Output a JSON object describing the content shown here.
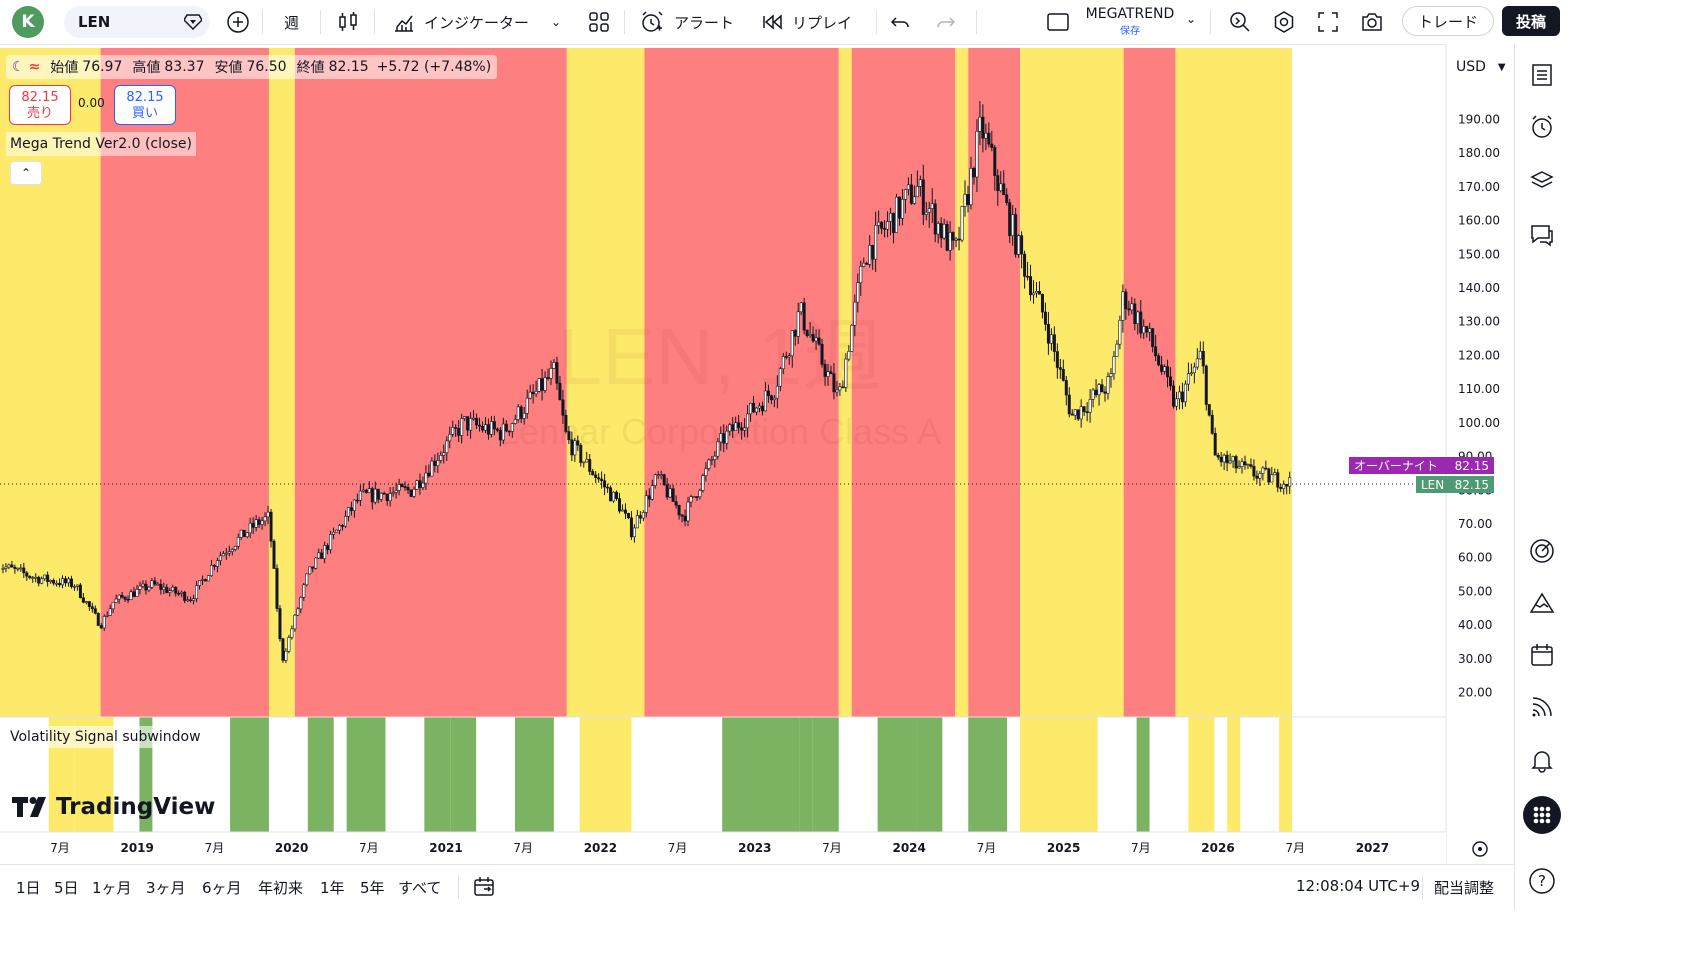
{
  "header": {
    "avatar_letter": "K",
    "symbol": "LEN",
    "interval": "週",
    "indicators_label": "インジケーター",
    "alert_label": "アラート",
    "replay_label": "リプレイ",
    "layout_name": "MEGATREND",
    "layout_save": "保存",
    "trade_label": "トレード",
    "post_label": "投稿"
  },
  "legend": {
    "open_label": "始値",
    "open": "76.97",
    "high_label": "高値",
    "high": "83.37",
    "low_label": "安値",
    "low": "76.50",
    "close_label": "終値",
    "close": "82.15",
    "change": "+5.72 (+7.48%)"
  },
  "trade": {
    "sell_price": "82.15",
    "sell_label": "売り",
    "spread": "0.00",
    "buy_price": "82.15",
    "buy_label": "買い"
  },
  "indicator_label": "Mega Trend Ver2.0 (close)",
  "subwindow_label": "Volatility Signal subwindow",
  "watermark": {
    "symbol": "LEN, 1週",
    "name": "Lennar Corporation Class A"
  },
  "price_scale": {
    "currency": "USD",
    "ticks": [
      "190.00",
      "180.00",
      "170.00",
      "160.00",
      "150.00",
      "140.00",
      "130.00",
      "120.00",
      "110.00",
      "100.00",
      "90.00",
      "80.00",
      "70.00",
      "60.00",
      "50.00",
      "40.00",
      "30.00",
      "20.00"
    ]
  },
  "tags": {
    "overnight_label": "オーバーナイト",
    "overnight_price": "82.15",
    "symbol_label": "LEN",
    "symbol_price": "82.15"
  },
  "time_axis": [
    "7月",
    "2019",
    "7月",
    "2020",
    "7月",
    "2021",
    "7月",
    "2022",
    "7月",
    "2023",
    "7月",
    "2024",
    "7月",
    "2025",
    "7月",
    "2026",
    "7月",
    "2027"
  ],
  "ranges": [
    "1日",
    "5日",
    "1ヶ月",
    "3ヶ月",
    "6ヶ月",
    "年初来",
    "1年",
    "5年",
    "すべて"
  ],
  "clock": "12:08:04 UTC+9",
  "adjust_label": "配当調整",
  "logo_text": "TradingView",
  "colors": {
    "red_zone": "#fe7f7f",
    "yellow_zone": "#fdea6b",
    "green_signal": "#7cb362",
    "candle": "#131722",
    "overnight_tag": "#9c27b0",
    "symbol_tag": "#4e9a75"
  },
  "chart_data": {
    "type": "candlestick",
    "title": "LEN, 1週",
    "x_range": [
      "2018-05",
      "2027-06"
    ],
    "y_range": [
      15,
      200
    ],
    "last_close": 82.15,
    "price_path": [
      [
        "2018-05",
        58
      ],
      [
        "2018-08",
        54
      ],
      [
        "2018-11",
        52
      ],
      [
        "2019-01",
        40
      ],
      [
        "2019-02",
        47
      ],
      [
        "2019-05",
        52
      ],
      [
        "2019-08",
        48
      ],
      [
        "2019-10",
        60
      ],
      [
        "2020-01",
        70
      ],
      [
        "2020-02",
        72
      ],
      [
        "2020-03",
        29
      ],
      [
        "2020-05",
        55
      ],
      [
        "2020-09",
        78
      ],
      [
        "2021-01",
        80
      ],
      [
        "2021-05",
        100
      ],
      [
        "2021-08",
        97
      ],
      [
        "2021-12",
        115
      ],
      [
        "2022-01",
        95
      ],
      [
        "2022-05",
        76
      ],
      [
        "2022-06",
        68
      ],
      [
        "2022-08",
        84
      ],
      [
        "2022-10",
        72
      ],
      [
        "2023-01",
        95
      ],
      [
        "2023-05",
        110
      ],
      [
        "2023-07",
        133
      ],
      [
        "2023-10",
        107
      ],
      [
        "2023-12",
        150
      ],
      [
        "2024-04",
        170
      ],
      [
        "2024-07",
        150
      ],
      [
        "2024-09",
        188
      ],
      [
        "2024-12",
        150
      ],
      [
        "2025-02",
        130
      ],
      [
        "2025-04",
        102
      ],
      [
        "2025-07",
        112
      ],
      [
        "2025-08",
        138
      ],
      [
        "2025-10",
        125
      ],
      [
        "2025-12",
        105
      ],
      [
        "2026-02",
        120
      ],
      [
        "2026-03",
        90
      ],
      [
        "2026-06",
        85
      ],
      [
        "2026-09",
        82.15
      ]
    ],
    "zones": [
      {
        "color": "yellow",
        "from": "2018-05",
        "to": "2019-01"
      },
      {
        "color": "red",
        "from": "2019-01",
        "to": "2020-02"
      },
      {
        "color": "yellow",
        "from": "2020-02",
        "to": "2020-04"
      },
      {
        "color": "red",
        "from": "2020-04",
        "to": "2022-01"
      },
      {
        "color": "yellow",
        "from": "2022-01",
        "to": "2022-07"
      },
      {
        "color": "red",
        "from": "2022-07",
        "to": "2023-10"
      },
      {
        "color": "yellow",
        "from": "2023-10",
        "to": "2023-11"
      },
      {
        "color": "red",
        "from": "2023-11",
        "to": "2024-07"
      },
      {
        "color": "yellow",
        "from": "2024-07",
        "to": "2024-08"
      },
      {
        "color": "red",
        "from": "2024-08",
        "to": "2024-12"
      },
      {
        "color": "yellow",
        "from": "2024-12",
        "to": "2025-08"
      },
      {
        "color": "red",
        "from": "2025-08",
        "to": "2025-12"
      },
      {
        "color": "yellow",
        "from": "2025-12",
        "to": "2026-09"
      }
    ],
    "signals": [
      {
        "color": "yellow",
        "from": "2018-09",
        "to": "2018-11"
      },
      {
        "color": "yellow",
        "from": "2018-11",
        "to": "2019-02"
      },
      {
        "color": "green",
        "from": "2019-04",
        "to": "2019-05"
      },
      {
        "color": "green",
        "from": "2019-11",
        "to": "2020-01"
      },
      {
        "color": "green",
        "from": "2020-01",
        "to": "2020-02"
      },
      {
        "color": "green",
        "from": "2020-05",
        "to": "2020-07"
      },
      {
        "color": "green",
        "from": "2020-08",
        "to": "2020-11"
      },
      {
        "color": "green",
        "from": "2021-02",
        "to": "2021-04"
      },
      {
        "color": "green",
        "from": "2021-04",
        "to": "2021-06"
      },
      {
        "color": "green",
        "from": "2021-09",
        "to": "2021-12"
      },
      {
        "color": "yellow",
        "from": "2022-02",
        "to": "2022-06"
      },
      {
        "color": "green",
        "from": "2023-01",
        "to": "2023-05"
      },
      {
        "color": "green",
        "from": "2023-05",
        "to": "2023-07"
      },
      {
        "color": "green",
        "from": "2023-07",
        "to": "2023-08"
      },
      {
        "color": "green",
        "from": "2023-08",
        "to": "2023-10"
      },
      {
        "color": "green",
        "from": "2024-01",
        "to": "2024-04"
      },
      {
        "color": "green",
        "from": "2024-04",
        "to": "2024-06"
      },
      {
        "color": "green",
        "from": "2024-08",
        "to": "2024-11"
      },
      {
        "color": "yellow",
        "from": "2024-12",
        "to": "2025-06"
      },
      {
        "color": "green",
        "from": "2025-09",
        "to": "2025-10"
      },
      {
        "color": "yellow",
        "from": "2026-01",
        "to": "2026-03"
      },
      {
        "color": "yellow",
        "from": "2026-04",
        "to": "2026-05"
      },
      {
        "color": "yellow",
        "from": "2026-08",
        "to": "2026-09"
      }
    ]
  }
}
